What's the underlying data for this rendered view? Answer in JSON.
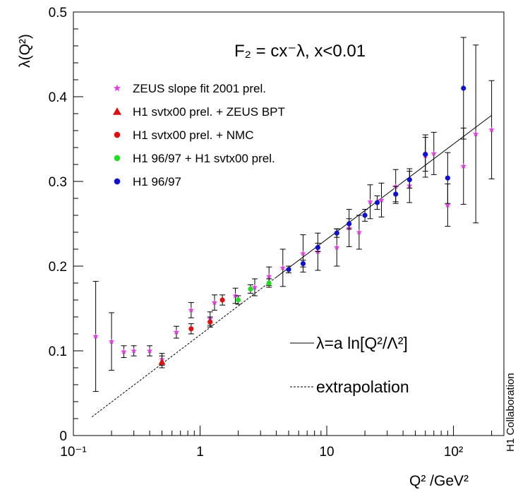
{
  "chart_data": {
    "type": "scatter",
    "title": "",
    "formula": "F₂ = cx⁻λ,  x<0.01",
    "xlabel": "Q² /GeV²",
    "ylabel": "λ(Q²)",
    "x_scale": "log",
    "xlim": [
      0.1,
      250
    ],
    "ylim": [
      0,
      0.5
    ],
    "x_tick_labels": [
      "10⁻¹",
      "1",
      "10",
      "10²"
    ],
    "y_tick_labels": [
      "0",
      "0.1",
      "0.2",
      "0.3",
      "0.4",
      "0.5"
    ],
    "grid": false,
    "legend_position": "top-left",
    "legend": [
      {
        "label": "ZEUS slope fit 2001 prel.",
        "marker": "star",
        "color": "#e040e0"
      },
      {
        "label": "H1 svtx00 prel. + ZEUS BPT",
        "marker": "triangle",
        "color": "#e01010"
      },
      {
        "label": "H1 svtx00 prel. + NMC",
        "marker": "circle",
        "color": "#e01010"
      },
      {
        "label": "H1 96/97 + H1 svtx00 prel.",
        "marker": "circle",
        "color": "#22dd22"
      },
      {
        "label": "H1 96/97",
        "marker": "circle",
        "color": "#1010d0"
      }
    ],
    "series": [
      {
        "name": "ZEUS slope fit 2001 prel.",
        "marker": "star",
        "color": "#e040e0",
        "points": [
          {
            "x": 0.15,
            "y": 0.117,
            "err": 0.065
          },
          {
            "x": 0.2,
            "y": 0.111,
            "err": 0.034
          },
          {
            "x": 0.25,
            "y": 0.099,
            "err": 0.007
          },
          {
            "x": 0.3,
            "y": 0.1,
            "err": 0.006
          },
          {
            "x": 0.4,
            "y": 0.1,
            "err": 0.006
          },
          {
            "x": 0.5,
            "y": 0.09,
            "err": 0.007
          },
          {
            "x": 0.65,
            "y": 0.122,
            "err": 0.007
          },
          {
            "x": 0.85,
            "y": 0.148,
            "err": 0.009
          },
          {
            "x": 1.2,
            "y": 0.138,
            "err": 0.008
          },
          {
            "x": 1.3,
            "y": 0.157,
            "err": 0.009
          },
          {
            "x": 1.9,
            "y": 0.165,
            "err": 0.009
          },
          {
            "x": 2.7,
            "y": 0.175,
            "err": 0.01
          },
          {
            "x": 3.5,
            "y": 0.188,
            "err": 0.011
          },
          {
            "x": 4.5,
            "y": 0.198,
            "err": 0.022
          },
          {
            "x": 6.5,
            "y": 0.215,
            "err": 0.022
          },
          {
            "x": 8.5,
            "y": 0.217,
            "err": 0.022
          },
          {
            "x": 12,
            "y": 0.222,
            "err": 0.022
          },
          {
            "x": 15,
            "y": 0.245,
            "err": 0.022
          },
          {
            "x": 18,
            "y": 0.24,
            "err": 0.02
          },
          {
            "x": 22,
            "y": 0.276,
            "err": 0.02
          },
          {
            "x": 27,
            "y": 0.278,
            "err": 0.02
          },
          {
            "x": 35,
            "y": 0.294,
            "err": 0.02
          },
          {
            "x": 45,
            "y": 0.295,
            "err": 0.02
          },
          {
            "x": 60,
            "y": 0.33,
            "err": 0.025
          },
          {
            "x": 70,
            "y": 0.333,
            "err": 0.025
          },
          {
            "x": 90,
            "y": 0.272,
            "err": 0.025
          },
          {
            "x": 120,
            "y": 0.318,
            "err": 0.045
          },
          {
            "x": 150,
            "y": 0.356,
            "err": 0.105
          },
          {
            "x": 200,
            "y": 0.361,
            "err": 0.058
          }
        ]
      },
      {
        "name": "H1 svtx00 prel. + ZEUS BPT",
        "marker": "triangle",
        "color": "#e01010",
        "points": [
          {
            "x": 0.5,
            "y": 0.087,
            "err": 0.007
          }
        ]
      },
      {
        "name": "H1 svtx00 prel. + NMC",
        "marker": "circle",
        "color": "#e01010",
        "points": [
          {
            "x": 0.85,
            "y": 0.126,
            "err": 0.006
          },
          {
            "x": 1.2,
            "y": 0.134,
            "err": 0.006
          },
          {
            "x": 1.5,
            "y": 0.16,
            "err": 0.006
          }
        ]
      },
      {
        "name": "H1 96/97 + H1 svtx00 prel.",
        "marker": "circle",
        "color": "#22dd22",
        "points": [
          {
            "x": 2.0,
            "y": 0.16,
            "err": 0.005
          },
          {
            "x": 2.5,
            "y": 0.173,
            "err": 0.005
          },
          {
            "x": 3.5,
            "y": 0.18,
            "err": 0.005
          }
        ]
      },
      {
        "name": "H1 96/97",
        "marker": "circle",
        "color": "#1010d0",
        "points": [
          {
            "x": 5,
            "y": 0.196,
            "err": 0.004
          },
          {
            "x": 6.5,
            "y": 0.203,
            "err": 0.004
          },
          {
            "x": 8.5,
            "y": 0.222,
            "err": 0.005
          },
          {
            "x": 12,
            "y": 0.239,
            "err": 0.005
          },
          {
            "x": 15,
            "y": 0.25,
            "err": 0.006
          },
          {
            "x": 20,
            "y": 0.26,
            "err": 0.007
          },
          {
            "x": 25,
            "y": 0.275,
            "err": 0.008
          },
          {
            "x": 35,
            "y": 0.285,
            "err": 0.009
          },
          {
            "x": 45,
            "y": 0.302,
            "err": 0.01
          },
          {
            "x": 60,
            "y": 0.332,
            "err": 0.02
          },
          {
            "x": 90,
            "y": 0.304,
            "err": 0.03
          },
          {
            "x": 120,
            "y": 0.41,
            "err": 0.06
          }
        ]
      }
    ],
    "fit_line": {
      "label": "λ=a ln[Q²/Λ²]",
      "style": "solid",
      "x": [
        4.0,
        200
      ],
      "y": [
        0.187,
        0.378
      ]
    },
    "extrapolation_line": {
      "label": "extrapolation",
      "style": "dashed",
      "x": [
        0.14,
        4.0
      ],
      "y": [
        0.022,
        0.187
      ]
    },
    "side_label": "H1 Collaboration"
  }
}
